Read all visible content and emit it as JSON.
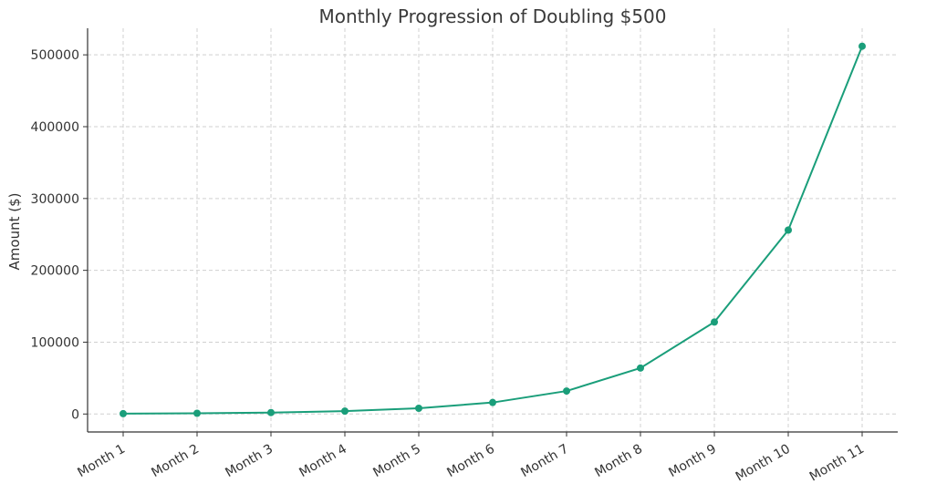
{
  "chart_data": {
    "type": "line",
    "title": "Monthly Progression of Doubling $500",
    "xlabel": "",
    "ylabel": "Amount ($)",
    "categories": [
      "Month 1",
      "Month 2",
      "Month 3",
      "Month 4",
      "Month 5",
      "Month 6",
      "Month 7",
      "Month 8",
      "Month 9",
      "Month 10",
      "Month 11"
    ],
    "series": [
      {
        "values": [
          500,
          1000,
          2000,
          4000,
          8000,
          16000,
          32000,
          64000,
          128000,
          256000,
          512000
        ]
      }
    ],
    "yticks": [
      "0",
      "100000",
      "200000",
      "300000",
      "400000",
      "500000"
    ],
    "ylim": [
      -25000,
      537000
    ],
    "grid": true,
    "line_color": "#1a9e7a"
  }
}
